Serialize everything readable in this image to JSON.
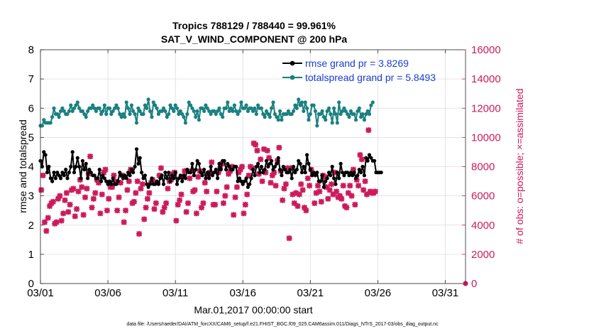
{
  "colors": {
    "rmse": "#000000",
    "totalspread": "#1a8080",
    "obs": "#cc1a5b",
    "legend_text": "#1a3fd0"
  },
  "chart_data": {
    "type": "line",
    "title_line1": "Tropics 788129 / 788440 = 99.961%",
    "title_line2": "SAT_V_WIND_COMPONENT @ 200 hPa",
    "xlabel": "Mar.01,2017 00:00:00 start",
    "ylabel": "rmse and totalspread",
    "y2label": "# of obs: o=possible; ×=assimilated",
    "xlim": [
      0,
      31.5
    ],
    "ylim": [
      0,
      8
    ],
    "y2lim": [
      0,
      16000
    ],
    "xticks": [
      0,
      5,
      10,
      15,
      20,
      25,
      30
    ],
    "xtick_labels": [
      "03/01",
      "03/06",
      "03/11",
      "03/16",
      "03/21",
      "03/26",
      "03/31"
    ],
    "yticks": [
      0,
      1,
      2,
      3,
      4,
      5,
      6,
      7,
      8
    ],
    "y2ticks": [
      0,
      2000,
      4000,
      6000,
      8000,
      10000,
      12000,
      14000,
      16000
    ],
    "series": [
      {
        "name": "rmse",
        "legend": "rmse grand pr = 3.8269",
        "x_step": 0.125,
        "values": [
          4.2,
          4.0,
          4.5,
          4.4,
          3.8,
          4.0,
          3.6,
          3.5,
          3.8,
          3.6,
          3.8,
          3.7,
          3.6,
          3.8,
          3.7,
          3.9,
          3.6,
          3.8,
          4.0,
          4.5,
          3.8,
          4.0,
          4.3,
          4.0,
          3.6,
          4.2,
          3.9,
          4.1,
          3.6,
          3.9,
          3.8,
          3.7,
          3.7,
          3.6,
          3.6,
          3.9,
          3.5,
          3.7,
          3.6,
          3.5,
          3.4,
          3.5,
          3.4,
          3.6,
          3.4,
          3.4,
          3.5,
          3.8,
          3.7,
          3.6,
          3.7,
          3.6,
          3.8,
          3.7,
          3.9,
          3.8,
          4.0,
          4.6,
          4.1,
          4.3,
          3.8,
          3.6,
          3.7,
          3.4,
          3.3,
          3.4,
          3.6,
          3.4,
          3.4,
          3.5,
          3.4,
          3.6,
          3.7,
          3.4,
          3.8,
          3.6,
          3.8,
          3.5,
          3.7,
          3.6,
          3.8,
          3.4,
          3.6,
          3.7,
          3.5,
          3.7,
          3.6,
          3.9,
          3.8,
          3.8,
          4.1,
          3.7,
          3.9,
          4.2,
          4.1,
          3.8,
          3.7,
          3.9,
          3.6,
          3.8,
          3.6,
          4.0,
          3.7,
          3.8,
          3.9,
          3.6,
          4.1,
          3.9,
          4.2,
          4.2,
          3.9,
          4.1,
          4.0,
          3.9,
          3.9,
          4.0,
          4.0,
          3.5,
          3.6,
          3.5,
          3.4,
          3.5,
          3.6,
          3.3,
          3.4,
          3.6,
          3.9,
          3.7,
          4.0,
          4.1,
          3.8,
          4.0,
          3.8,
          3.9,
          4.2,
          4.0,
          4.1,
          4.2,
          3.9,
          4.0,
          4.1,
          4.3,
          3.9,
          3.7,
          4.0,
          3.9,
          3.8,
          3.8,
          3.9,
          3.6,
          4.0,
          3.8,
          3.9,
          4.2,
          4.1,
          3.8,
          4.0,
          3.8,
          4.4,
          4.1,
          3.9,
          3.7,
          3.8,
          3.7,
          3.8,
          3.5,
          3.5,
          3.7,
          3.3,
          3.5,
          3.6,
          3.8,
          3.7,
          4.0,
          3.6,
          3.4,
          3.8,
          3.6,
          4.1,
          3.8,
          3.7,
          3.8,
          3.8,
          3.7,
          3.8,
          3.7,
          3.8,
          3.6,
          3.7,
          3.9,
          3.8,
          4.0,
          3.7,
          4.3,
          4.2,
          4.4,
          4.3,
          4.2,
          4.2,
          3.8,
          3.8,
          3.8,
          3.8
        ]
      },
      {
        "name": "totalspread",
        "legend": "totalspread grand pr = 5.8493",
        "x_step": 0.125,
        "values": [
          5.4,
          5.4,
          5.6,
          5.5,
          5.5,
          5.5,
          5.5,
          5.7,
          6.0,
          5.8,
          5.8,
          5.7,
          5.9,
          6.0,
          5.9,
          5.8,
          5.8,
          5.9,
          6.1,
          5.9,
          6.0,
          6.1,
          6.2,
          6.0,
          5.9,
          5.9,
          5.8,
          5.7,
          5.9,
          6.0,
          6.0,
          6.1,
          6.0,
          5.9,
          6.0,
          6.0,
          5.8,
          5.9,
          6.1,
          5.8,
          6.0,
          6.0,
          5.8,
          5.9,
          6.0,
          6.1,
          6.0,
          5.8,
          5.7,
          5.8,
          5.7,
          6.2,
          6.0,
          5.8,
          6.1,
          5.9,
          5.8,
          5.5,
          6.0,
          5.9,
          5.8,
          5.8,
          6.1,
          6.0,
          6.3,
          5.9,
          5.7,
          6.2,
          6.1,
          6.0,
          5.8,
          5.9,
          5.9,
          6.0,
          5.9,
          5.7,
          5.8,
          6.1,
          6.0,
          5.9,
          6.1,
          6.0,
          5.8,
          5.9,
          5.8,
          5.7,
          5.5,
          5.8,
          6.2,
          6.1,
          6.0,
          5.9,
          5.7,
          5.9,
          5.6,
          6.0,
          6.0,
          5.9,
          6.1,
          6.0,
          5.9,
          5.8,
          5.9,
          5.9,
          5.8,
          5.9,
          6.0,
          5.8,
          5.7,
          6.0,
          6.0,
          6.2,
          5.9,
          6.0,
          5.9,
          6.1,
          5.9,
          5.8,
          5.9,
          6.2,
          6.0,
          6.0,
          6.1,
          5.9,
          6.0,
          6.0,
          5.9,
          6.0,
          5.8,
          6.1,
          6.0,
          6.0,
          5.8,
          5.7,
          5.9,
          5.8,
          5.7,
          6.0,
          6.2,
          5.8,
          5.7,
          5.6,
          5.9,
          5.6,
          5.8,
          5.8,
          5.8,
          5.9,
          5.8,
          5.8,
          5.9,
          6.1,
          6.0,
          6.3,
          6.1,
          6.2,
          5.9,
          6.2,
          6.0,
          5.6,
          5.8,
          6.1,
          6.1,
          5.9,
          5.4,
          5.8,
          5.8,
          5.9,
          5.7,
          5.6,
          5.9,
          6.0,
          5.8,
          5.5,
          6.0,
          5.8,
          5.5,
          6.2,
          5.8,
          5.9,
          6.0,
          5.9,
          5.8,
          5.7,
          5.9,
          5.8,
          5.8,
          5.6,
          5.9,
          6.0,
          5.7,
          5.8,
          5.6,
          5.8,
          5.9,
          5.8,
          6.1,
          6.2
        ]
      },
      {
        "name": "obs_assimilated",
        "axis": "right",
        "marker": "x",
        "x_step": 0.125,
        "values": [
          6400,
          7400,
          4200,
          3600,
          4500,
          5300,
          5500,
          5600,
          4100,
          4200,
          5800,
          6000,
          4300,
          4800,
          5700,
          6200,
          4900,
          5400,
          6400,
          6500,
          4600,
          5100,
          6300,
          7100,
          6600,
          4700,
          5900,
          6500,
          7500,
          8700,
          5200,
          5800,
          6200,
          7100,
          6900,
          4800,
          6100,
          7600,
          7800,
          5000,
          5800,
          6600,
          6600,
          7400,
          7000,
          5000,
          5900,
          6900,
          7400,
          4200,
          5000,
          6400,
          7000,
          7800,
          5500,
          5600,
          6200,
          7000,
          3400,
          6500,
          6800,
          4400,
          5200,
          5800,
          6200,
          6900,
          7100,
          5100,
          5500,
          6900,
          7400,
          7900,
          4900,
          5200,
          5500,
          6500,
          7000,
          7100,
          7500,
          7600,
          4300,
          5400,
          5700,
          6100,
          7300,
          7700,
          4900,
          5500,
          7200,
          7700,
          6300,
          6400,
          4800,
          7300,
          7700,
          5200,
          5500,
          6900,
          6300,
          7400,
          7600,
          8300,
          5400,
          5400,
          6300,
          7600,
          7900,
          8200,
          5500,
          6000,
          6600,
          7500,
          7700,
          8000,
          4700,
          5900,
          6600,
          7600,
          7800,
          8000,
          4800,
          5400,
          6100,
          7400,
          8000,
          7900,
          9600,
          9500,
          9100,
          7500,
          8500,
          7000,
          9200,
          7600,
          9100,
          8600,
          6900,
          7400,
          7600,
          6700,
          8400,
          9300,
          7700,
          5700,
          6500,
          6800,
          7900,
          3100,
          7900,
          6100,
          5500,
          6200,
          5300,
          6100,
          6800,
          6400,
          5200,
          5000,
          7200,
          6700,
          7800,
          7500,
          5500,
          6200,
          6700,
          6300,
          5600,
          7400,
          7300,
          6600,
          5800,
          6400,
          6800,
          6100,
          7600,
          6300,
          5900,
          6000,
          5800,
          6700,
          5300,
          5200,
          6200,
          6700,
          6000,
          7800,
          5400,
          7100,
          6700,
          8800,
          8500,
          6400,
          7000,
          6100,
          10500,
          6300,
          6200,
          6200,
          6300
        ]
      }
    ]
  },
  "footnote": "data file: /Users/raeder/DAI/ATM_forcXX/CAM6_setup/f.e21.FHIST_BGC.f09_025.CAM6assim.011/Diags_NTrS_2017-03/obs_diag_output.nc"
}
